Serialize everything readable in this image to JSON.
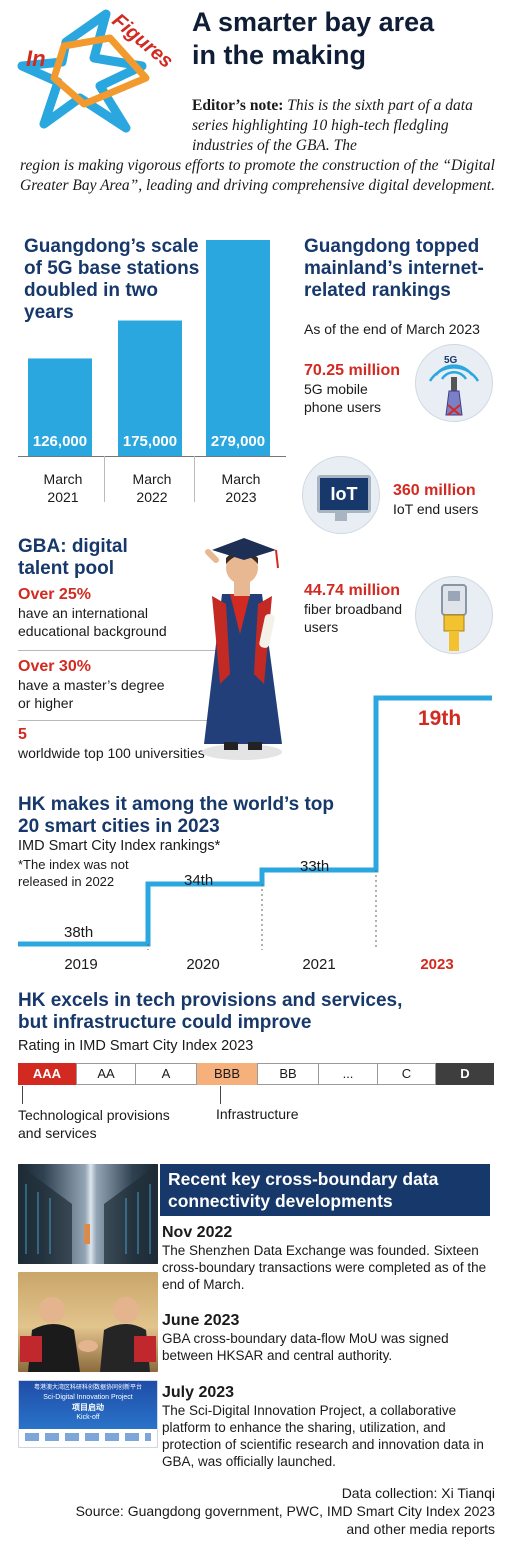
{
  "header": {
    "logo_text_1": "In",
    "logo_text_2": "Figures",
    "title_line1": "A smarter bay area",
    "title_line2": "in the making",
    "note_label": "Editor’s note:",
    "note_text_a": "This is the sixth part of a data series highlighting 10 high-tech fledgling industries of the GBA. The",
    "note_text_b": "region is making vigorous efforts to promote the construction of the “Digital Greater Bay Area”, leading and driving comprehensive digital development."
  },
  "chart_data": {
    "type": "bar",
    "title": "Guangdong’s scale of 5G base stations doubled in two years",
    "categories": [
      "March 2021",
      "March 2022",
      "March 2023"
    ],
    "values": [
      126000,
      175000,
      279000
    ],
    "value_labels": [
      "126,000",
      "175,000",
      "279,000"
    ],
    "category_lines": [
      [
        "March",
        "2021"
      ],
      [
        "March",
        "2022"
      ],
      [
        "March",
        "2023"
      ]
    ],
    "ylim": [
      0,
      279000
    ],
    "bar_color": "#2aa7df"
  },
  "internet": {
    "title_l1": "Guangdong topped",
    "title_l2": "mainland’s internet-",
    "title_l3": "related rankings",
    "subtitle": "As of the end of March 2023",
    "s1_num": "70.25 million",
    "s1_txt1": "5G mobile",
    "s1_txt2": "phone users",
    "s2_num": "360 million",
    "s2_txt": "IoT end users",
    "s3_num": "44.74 million",
    "s3_txt1": "fiber broadband",
    "s3_txt2": "users",
    "icon_5g": "5G",
    "icon_iot": "IoT"
  },
  "talent": {
    "title_l1": "GBA: digital",
    "title_l2": "talent pool",
    "t1_num": "Over 25%",
    "t1_txt1": "have an international",
    "t1_txt2": "educational background",
    "t2_num": "Over 30%",
    "t2_txt1": "have a master’s degree",
    "t2_txt2": "or higher",
    "t3_num": "5",
    "t3_txt": "worldwide top 100 universities"
  },
  "smartcity": {
    "title_l1": "HK makes it among the world’s top",
    "title_l2": "20 smart cities in 2023",
    "sub": "IMD Smart City Index rankings*",
    "foot_l1": "*The index was not",
    "foot_l2": "released in 2022",
    "ranks": [
      "38th",
      "34th",
      "33th",
      "19th"
    ],
    "years": [
      "2019",
      "2020",
      "2021",
      "2023"
    ],
    "line_color": "#2aa7df"
  },
  "rating": {
    "title_l1": "HK excels in tech provisions and services,",
    "title_l2": "but infrastructure could improve",
    "sub": "Rating in IMD Smart City Index 2023",
    "grades": [
      "AAA",
      "AA",
      "A",
      "BBB",
      "BB",
      "...",
      "C",
      "D"
    ],
    "label_tech_l1": "Technological provisions",
    "label_tech_l2": "and services",
    "label_infra": "Infrastructure",
    "colors": {
      "aaa": "#d22a21",
      "bbb": "#f6b07c",
      "d": "#3e3e3e"
    }
  },
  "developments": {
    "title_l1": "Recent key cross-boundary data",
    "title_l2": "connectivity developments",
    "items": [
      {
        "date": "Nov 2022",
        "text": "The Shenzhen Data Exchange was founded. Sixteen cross-boundary transactions were completed as of the end of March."
      },
      {
        "date": "June 2023",
        "text": "GBA cross-boundary data-flow MoU was signed between HKSAR and central authority."
      },
      {
        "date": "July 2023",
        "text": "The Sci-Digital Innovation Project, a collaborative platform to enhance the sharing, utilization, and protection of scientific research and innovation data in GBA, was officially launched."
      }
    ],
    "banner_l1": "粤港澳大湾区科研科创数据协同创新平台",
    "banner_l2": "Sci-Digital Innovation Project",
    "banner_l3": "项目启动",
    "banner_l4": "Kick-off"
  },
  "footer": {
    "collection": "Data collection: Xi Tianqi",
    "source_l1": "Source: Guangdong government, PWC, IMD Smart City Index 2023",
    "source_l2": "and other media reports"
  }
}
